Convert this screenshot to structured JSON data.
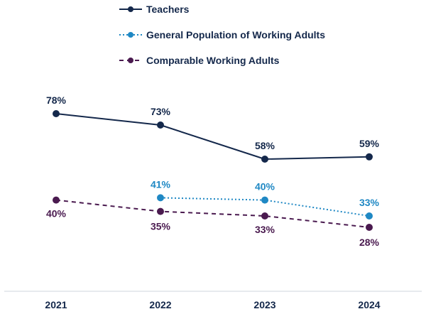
{
  "chart_data": {
    "type": "line",
    "title": "",
    "xlabel": "",
    "ylabel": "",
    "categories": [
      "2021",
      "2022",
      "2023",
      "2024"
    ],
    "ylim": [
      0,
      100
    ],
    "grid": false,
    "legend_placement": "top-left",
    "series": [
      {
        "name": "Teachers",
        "values": [
          78,
          73,
          58,
          59
        ],
        "labels": [
          "78%",
          "73%",
          "58%",
          "59%"
        ],
        "color": "#14284b",
        "line_style": "solid"
      },
      {
        "name": "General Population of Working Adults",
        "values": [
          null,
          41,
          40,
          33
        ],
        "labels": [
          "",
          "41%",
          "40%",
          "33%"
        ],
        "color": "#1f88c4",
        "line_style": "dotted"
      },
      {
        "name": "Comparable Working Adults",
        "values": [
          40,
          35,
          33,
          28
        ],
        "labels": [
          "40%",
          "35%",
          "33%",
          "28%"
        ],
        "color": "#4a1a4f",
        "line_style": "dashed"
      }
    ]
  }
}
